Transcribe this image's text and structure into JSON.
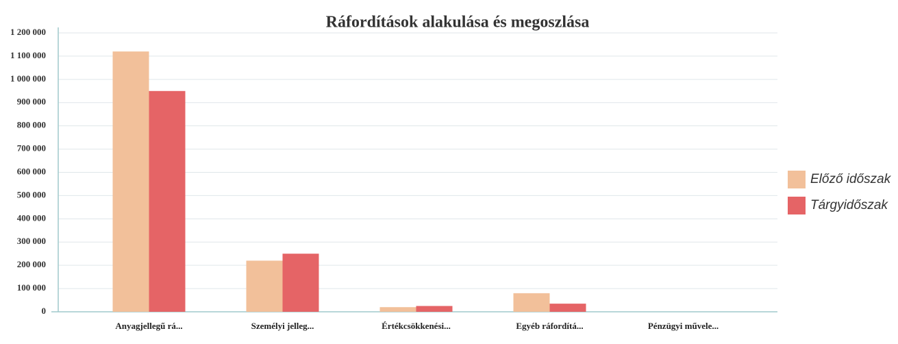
{
  "chart_data": {
    "type": "bar",
    "title": "Ráfordítások alakulása és megoszlása",
    "categories": [
      "Anyagjellegű rá...",
      "Személyi jelleg...",
      "Értékcsökkenési...",
      "Egyéb ráfordítá...",
      "Pénzügyi művele..."
    ],
    "series": [
      {
        "name": "Előző időszak",
        "color": "#f2c09a",
        "values": [
          1120000,
          220000,
          20000,
          80000,
          0
        ]
      },
      {
        "name": "Tárgyidőszak",
        "color": "#e56466",
        "values": [
          950000,
          250000,
          25000,
          35000,
          0
        ]
      }
    ],
    "ylim": [
      0,
      1200000
    ],
    "yticks": [
      0,
      {
        "value": 100000,
        "label": "100 000"
      },
      {
        "value": 200000,
        "label": "200 000"
      },
      {
        "value": 300000,
        "label": "300 000"
      },
      {
        "value": 400000,
        "label": "400 000"
      },
      {
        "value": 500000,
        "label": "500 000"
      },
      {
        "value": 600000,
        "label": "600 000"
      },
      {
        "value": 700000,
        "label": "700 000"
      },
      {
        "value": 800000,
        "label": "800 000"
      },
      {
        "value": 900000,
        "label": "900 000"
      },
      {
        "value": 1000000,
        "label": "1 000 000"
      },
      {
        "value": 1100000,
        "label": "1 100 000"
      },
      {
        "value": 1200000,
        "label": "1 200 000"
      }
    ],
    "grid": true,
    "legend": "right"
  }
}
